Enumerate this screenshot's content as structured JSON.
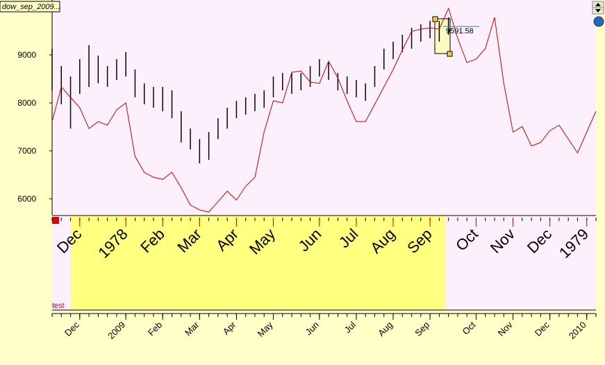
{
  "chart_data": {
    "type": "line",
    "title": "dow_sep_2009...",
    "panel_label": "test",
    "categories": [
      null,
      null,
      null,
      "Dec",
      null,
      null,
      null,
      null,
      "2009",
      null,
      null,
      null,
      "Feb",
      null,
      null,
      null,
      "Mar",
      null,
      null,
      null,
      "Apr",
      null,
      null,
      null,
      "May",
      null,
      null,
      null,
      null,
      "Jun",
      null,
      null,
      null,
      "Jul",
      null,
      null,
      null,
      "Aug",
      null,
      null,
      null,
      "Sep",
      null,
      null,
      null,
      null,
      "Oct",
      null,
      null,
      null,
      "Nov",
      null,
      null,
      null,
      "Dec",
      null,
      null,
      null,
      "2010",
      null
    ],
    "categories2": [
      null,
      null,
      null,
      "Dec",
      null,
      null,
      null,
      null,
      "1978",
      null,
      null,
      null,
      "Feb",
      null,
      null,
      null,
      "Mar",
      null,
      null,
      null,
      "Apr",
      null,
      null,
      null,
      "May",
      null,
      null,
      null,
      null,
      "Jun",
      null,
      null,
      null,
      "Jul",
      null,
      null,
      null,
      "Aug",
      null,
      null,
      null,
      "Sep",
      null,
      null,
      null,
      null,
      "Oct",
      null,
      null,
      null,
      "Nov",
      null,
      null,
      null,
      "Dec",
      null,
      null,
      null,
      "1979",
      null
    ],
    "ylim": [
      5680,
      10145
    ],
    "yticks": [
      6000,
      7000,
      8000,
      9000
    ],
    "series": [
      {
        "type": "range",
        "color": "#000000",
        "high": [
          9130,
          8768,
          8551,
          8913,
          9203,
          8986,
          8768,
          8913,
          9058,
          8696,
          8406,
          8333,
          8333,
          8261,
          7826,
          7464,
          7246,
          7391,
          7681,
          7899,
          8043,
          8116,
          8188,
          8261,
          8551,
          8623,
          8623,
          8623,
          8768,
          8913,
          8841,
          8623,
          8551,
          8478,
          8406,
          8768,
          9130,
          9275,
          9420,
          9565,
          9638,
          9710,
          9710,
          9783,
          null,
          null,
          null,
          null,
          null,
          null,
          null,
          null,
          null,
          null,
          null,
          null,
          null,
          null,
          null,
          null
        ],
        "low": [
          8261,
          7971,
          7464,
          8188,
          8333,
          8406,
          8333,
          8478,
          8551,
          8116,
          7971,
          7899,
          7826,
          7681,
          7174,
          7029,
          6739,
          6812,
          7246,
          7464,
          7681,
          7754,
          7826,
          7899,
          8116,
          8261,
          8188,
          8261,
          8333,
          8551,
          8478,
          8261,
          8188,
          8116,
          8043,
          8333,
          8696,
          8913,
          9058,
          9130,
          9275,
          9348,
          9275,
          9420,
          null,
          null,
          null,
          null,
          null,
          null,
          null,
          null,
          null,
          null,
          null,
          null,
          null,
          null,
          null,
          null
        ]
      },
      {
        "type": "line",
        "color": "#cc0000",
        "values": [
          7609,
          8333,
          8116,
          7899,
          7464,
          7609,
          7536,
          7855,
          8000,
          6884,
          6551,
          6449,
          6406,
          6551,
          6232,
          5870,
          5768,
          5725,
          5942,
          6159,
          5971,
          6261,
          6449,
          7391,
          8043,
          8000,
          8638,
          8667,
          8435,
          8406,
          8870,
          8522,
          8043,
          7609,
          7609,
          7971,
          8333,
          8696,
          9101,
          9493,
          9536,
          9565,
          9536,
          9971,
          9348,
          8841,
          8913,
          9130,
          9783,
          8406,
          7391,
          7507,
          7101,
          7174,
          7420,
          7536,
          7246,
          6957,
          7391,
          7826
        ]
      }
    ],
    "annotation_value": 9591.58
  }
}
